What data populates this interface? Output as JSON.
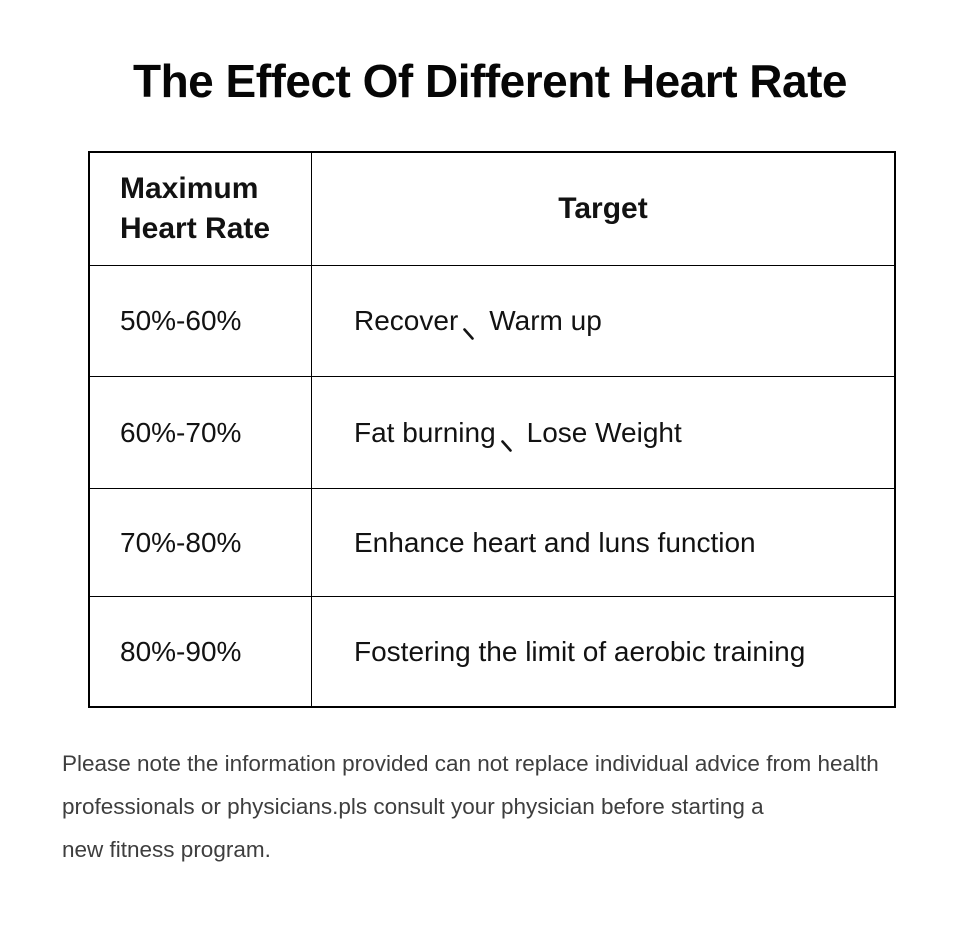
{
  "title": "The Effect Of Different Heart Rate",
  "table": {
    "headers": [
      "Maximum Heart Rate",
      "Target"
    ],
    "target_separator": "、",
    "rows": [
      {
        "range": "50%-60%",
        "target_parts": [
          "Recover",
          "Warm up"
        ]
      },
      {
        "range": "60%-70%",
        "target_parts": [
          "Fat burning",
          "Lose Weight"
        ]
      },
      {
        "range": "70%-80%",
        "target_parts": [
          "Enhance heart and luns function"
        ]
      },
      {
        "range": "80%-90%",
        "target_parts": [
          "Fostering the limit of aerobic training"
        ]
      }
    ],
    "border_color": "#000000"
  },
  "footer": {
    "lines": [
      "Please note the information provided can not replace individual advice from",
      "health professionals or physicians.pls consult your physician before starting a",
      "new fitness program."
    ],
    "text_color": "#3e3e3e"
  }
}
